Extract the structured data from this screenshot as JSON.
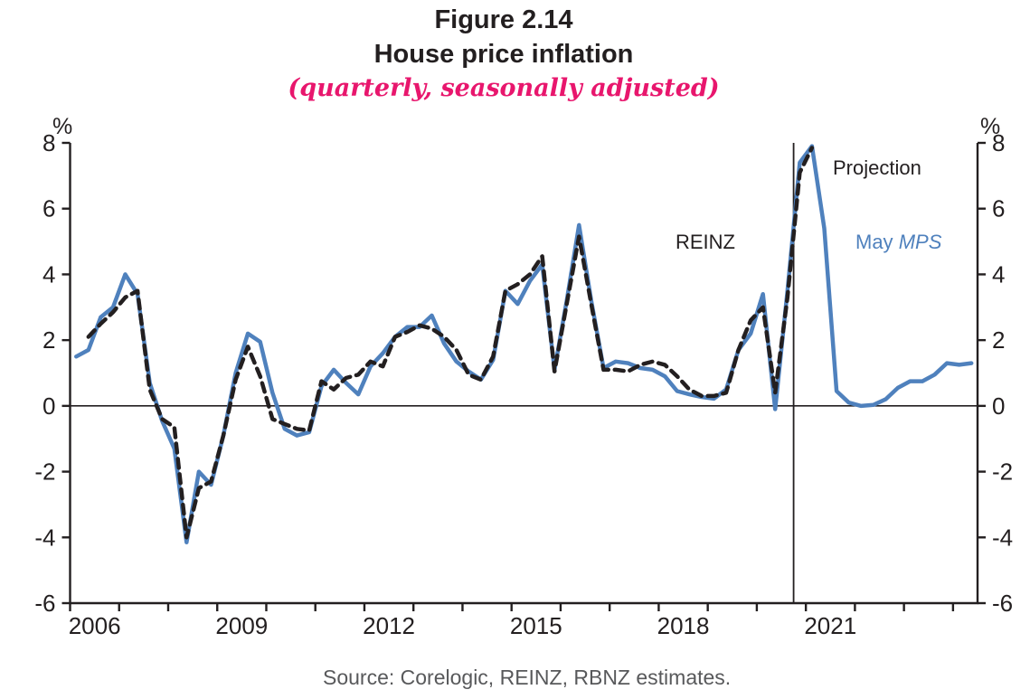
{
  "figure": {
    "title": "Figure 2.14",
    "subtitle": "House price inflation",
    "caption": "(quarterly, seasonally adjusted)",
    "source": "Source: Corelogic, REINZ, RBNZ estimates.",
    "unit_left": "%",
    "unit_right": "%"
  },
  "annotations": {
    "reinz": "REINZ",
    "projection": "Projection",
    "may": "May ",
    "mps": "MPS"
  },
  "colors": {
    "blue": "#4f81bd",
    "black": "#231f20",
    "pink": "#e8166d",
    "gray": "#58595b"
  },
  "chart_data": {
    "type": "line",
    "title": "House price inflation",
    "note": "(quarterly, seasonally adjusted)",
    "ylabel": "%",
    "grid": false,
    "legend_position": "inline-annotations",
    "x_range": [
      2006.0,
      2024.5
    ],
    "y_range": [
      -6,
      8
    ],
    "y_ticks": [
      8,
      6,
      4,
      2,
      0,
      -2,
      -4,
      -6
    ],
    "x_tick_years_start": 2006,
    "x_tick_years_end": 2024,
    "x_tick_labels": [
      {
        "label": "2006",
        "at": 2006.5
      },
      {
        "label": "2009",
        "at": 2009.5
      },
      {
        "label": "2012",
        "at": 2012.5
      },
      {
        "label": "2015",
        "at": 2015.5
      },
      {
        "label": "2018",
        "at": 2018.5
      },
      {
        "label": "2021",
        "at": 2021.5
      }
    ],
    "zero_line": true,
    "projection_line_x": 2020.75,
    "series": [
      {
        "name": "May MPS",
        "style": "solid",
        "color": "#4f81bd",
        "start": "2006Q1",
        "frequency": "quarterly",
        "values": [
          1.5,
          1.7,
          2.7,
          3.0,
          4.0,
          3.4,
          0.7,
          -0.45,
          -1.3,
          -4.15,
          -2.0,
          -2.4,
          -0.9,
          1.0,
          2.2,
          1.95,
          0.4,
          -0.7,
          -0.9,
          -0.8,
          0.6,
          1.1,
          0.7,
          0.35,
          1.2,
          1.6,
          2.1,
          2.4,
          2.4,
          2.75,
          1.9,
          1.35,
          1.05,
          0.8,
          1.4,
          3.5,
          3.1,
          3.8,
          4.3,
          1.1,
          3.2,
          5.5,
          3.2,
          1.15,
          1.35,
          1.3,
          1.15,
          1.1,
          0.9,
          0.45,
          0.35,
          0.27,
          0.22,
          0.5,
          1.7,
          2.2,
          3.4,
          -0.1,
          3.5,
          7.4,
          7.9,
          5.4,
          0.45,
          0.1,
          0.0,
          0.03,
          0.2,
          0.55,
          0.75,
          0.75,
          0.95,
          1.3,
          1.25,
          1.3
        ]
      },
      {
        "name": "REINZ",
        "style": "dashed",
        "color": "#231f20",
        "start": "2006Q2",
        "frequency": "quarterly",
        "values": [
          2.1,
          2.5,
          2.85,
          3.3,
          3.5,
          0.5,
          -0.4,
          -0.65,
          -4.0,
          -2.5,
          -2.3,
          -0.9,
          0.8,
          1.8,
          0.9,
          -0.4,
          -0.55,
          -0.7,
          -0.75,
          0.75,
          0.5,
          0.85,
          0.95,
          1.35,
          1.2,
          2.1,
          2.25,
          2.45,
          2.35,
          2.1,
          1.7,
          0.95,
          0.8,
          1.5,
          3.5,
          3.7,
          4.0,
          4.55,
          1.05,
          3.1,
          5.15,
          3.1,
          1.1,
          1.1,
          1.05,
          1.25,
          1.35,
          1.25,
          0.9,
          0.5,
          0.3,
          0.3,
          0.4,
          1.7,
          2.6,
          3.0,
          0.4,
          3.3,
          7.1,
          7.85
        ]
      }
    ]
  }
}
